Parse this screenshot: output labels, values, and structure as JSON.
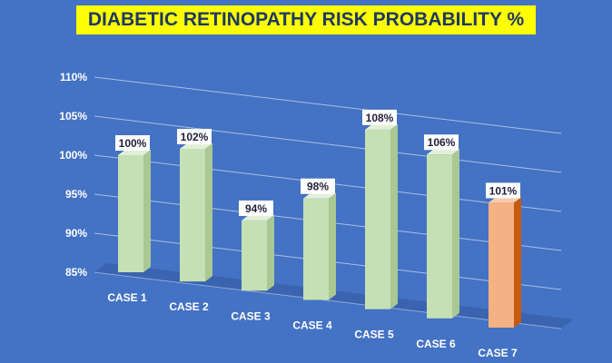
{
  "chart_data": {
    "type": "bar",
    "title": "DIABETIC RETINOPATHY RISK PROBABILITY %",
    "categories": [
      "CASE 1",
      "CASE 2",
      "CASE 3",
      "CASE 4",
      "CASE 5",
      "CASE 6",
      "CASE 7"
    ],
    "values": [
      100,
      102,
      94,
      98,
      108,
      106,
      101
    ],
    "data_labels": [
      "100%",
      "102%",
      "94%",
      "98%",
      "108%",
      "106%",
      "101%"
    ],
    "y_tick_labels": [
      "85%",
      "90%",
      "95%",
      "100%",
      "105%",
      "110%"
    ],
    "y_ticks": [
      85,
      90,
      95,
      100,
      105,
      110
    ],
    "ylim": [
      85,
      110
    ],
    "grid": true,
    "legend": "none",
    "colors": {
      "background": "#4472c4",
      "title_bg": "#ffff00",
      "title_text": "#1f3864",
      "bar_default": "#c5e0b4",
      "bar_highlight": "#f4b183",
      "highlight_index": 6
    }
  }
}
